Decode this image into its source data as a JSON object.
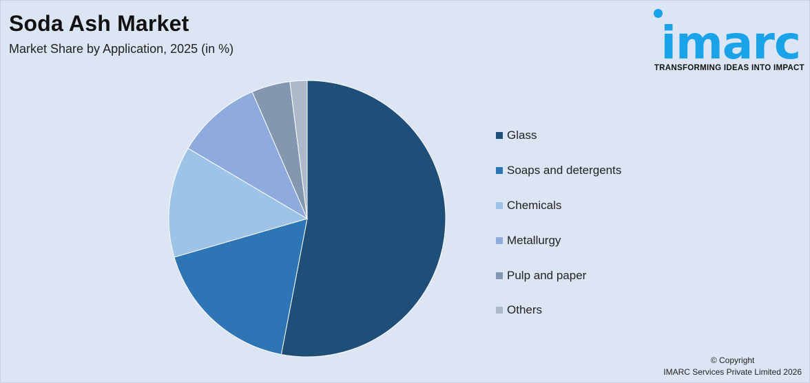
{
  "header": {
    "title": "Soda Ash Market",
    "subtitle": "Market Share by Application, 2025 (in %)"
  },
  "logo": {
    "wordmark": "imarc",
    "tagline": "TRANSFORMING IDEAS INTO IMPACT"
  },
  "footer": {
    "copyright_line1": "© Copyright",
    "copyright_line2": "IMARC Services Private Limited 2026"
  },
  "chart_data": {
    "type": "pie",
    "title": "Soda Ash Market",
    "subtitle": "Market Share by Application, 2025 (in %)",
    "legend_position": "right",
    "categories": [
      "Glass",
      "Soaps and detergents",
      "Chemicals",
      "Metallurgy",
      "Pulp and paper",
      "Others"
    ],
    "values": [
      53,
      17.5,
      13,
      10,
      4.5,
      2
    ],
    "colors": [
      "#1f4e79",
      "#2e75b6",
      "#9dc3e6",
      "#8faadc",
      "#8497b0",
      "#adb9ca"
    ]
  }
}
